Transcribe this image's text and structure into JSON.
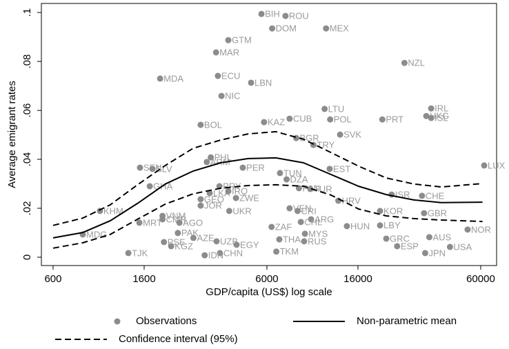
{
  "chart_data": {
    "type": "scatter",
    "x_label": "GDP/capita (US$) log scale",
    "y_label": "Average emigrant rates",
    "x_scale": "log",
    "xlim": [
      529,
      71200
    ],
    "ylim": [
      -0.0034,
      0.1037
    ],
    "xticks": [
      600,
      1600,
      6000,
      16000,
      60000
    ],
    "yticks": [
      0,
      {
        "value": 0.02,
        "label": ".02"
      },
      {
        "value": 0.04,
        "label": ".04"
      },
      {
        "value": 0.06,
        "label": ".06"
      },
      {
        "value": 0.08,
        "label": ".08"
      },
      {
        "value": 0.1,
        "label": ".1"
      }
    ],
    "series": [
      {
        "name": "Observations",
        "color": "#8c8c8c",
        "labels": [
          "BIH",
          "ROU",
          "DOM",
          "MEX",
          "GTM",
          "MAR",
          "MDA",
          "ECU",
          "LBN",
          "NZL",
          "NIC",
          "BOL",
          "KAZ",
          "LTU",
          "CUB",
          "POL",
          "PRT",
          "IRL",
          "HKG",
          "ISL",
          "SVK",
          "BGR",
          "TRY",
          "LUX",
          "SEN",
          "SLV",
          "PHL",
          "ARM",
          "PER",
          "EST",
          "TUN",
          "DZA",
          "ISR",
          "CHE",
          "PRY",
          "LKA",
          "IRQ",
          "ZWE",
          "GHA",
          "KHM",
          "GEO",
          "JOR",
          "UKR",
          "PAN",
          "TUR",
          "HRV",
          "VEN",
          "CRI",
          "ARG",
          "CHL",
          "HUN",
          "KOR",
          "LBY",
          "GBR",
          "USA",
          "NOR",
          "JPN",
          "AUS",
          "ESP",
          "GRC",
          "MYS",
          "RUS",
          "THA",
          "TKM",
          "ZAF",
          "CHN",
          "IDN",
          "UZB",
          "EGY",
          "AZE",
          "PAK",
          "KGZ",
          "PSE",
          "TJK",
          "MDG",
          "MRT",
          "CMR",
          "VNM",
          "AGO"
        ],
        "x": [
          5660,
          7330,
          6350,
          11350,
          3960,
          3470,
          1900,
          3540,
          5060,
          26400,
          3680,
          2940,
          5820,
          11170,
          7660,
          11860,
          20800,
          35200,
          33400,
          35200,
          13200,
          8230,
          9900,
          62300,
          1530,
          1750,
          3280,
          3140,
          4630,
          11800,
          6910,
          7420,
          23000,
          31900,
          3600,
          3240,
          3960,
          4300,
          1700,
          994,
          2940,
          2940,
          4000,
          8470,
          9580,
          12950,
          7660,
          8350,
          9660,
          8650,
          14200,
          20300,
          20300,
          32600,
          43100,
          52100,
          33000,
          34500,
          24400,
          21700,
          9040,
          8960,
          6860,
          6640,
          6310,
          3620,
          3070,
          3490,
          4330,
          2720,
          2300,
          2140,
          1980,
          1350,
          826,
          1520,
          1950,
          1950,
          2340
        ],
        "values": [
          0.0994,
          0.0986,
          0.0935,
          0.0935,
          0.0887,
          0.0837,
          0.073,
          0.0741,
          0.0713,
          0.0794,
          0.0659,
          0.0541,
          0.0552,
          0.0606,
          0.0566,
          0.0563,
          0.0563,
          0.0608,
          0.0577,
          0.0569,
          0.0501,
          0.0487,
          0.0459,
          0.0375,
          0.0366,
          0.0361,
          0.0408,
          0.0389,
          0.0366,
          0.0361,
          0.0344,
          0.0318,
          0.0256,
          0.0251,
          0.029,
          0.0262,
          0.027,
          0.0242,
          0.029,
          0.0189,
          0.0237,
          0.0211,
          0.0189,
          0.0282,
          0.0279,
          0.0231,
          0.02,
          0.0189,
          0.0155,
          0.0144,
          0.0127,
          0.0189,
          0.013,
          0.018,
          0.0042,
          0.0113,
          0.0017,
          0.0082,
          0.0045,
          0.0076,
          0.0096,
          0.0065,
          0.0073,
          0.0023,
          0.0124,
          0.0017,
          0.0008,
          0.0065,
          0.0051,
          0.0079,
          0.0099,
          0.0045,
          0.0062,
          0.0017,
          0.0093,
          0.0141,
          0.0155,
          0.0169,
          0.0141
        ]
      },
      {
        "name": "Non-parametric mean",
        "color": "#000000",
        "line_style": "solid",
        "x": [
          600,
          826,
          1110,
          1490,
          2010,
          2710,
          3650,
          4910,
          6610,
          8890,
          11970,
          16100,
          21700,
          29200,
          39300,
          61200
        ],
        "values": [
          0.0079,
          0.0101,
          0.0149,
          0.022,
          0.0299,
          0.0352,
          0.0386,
          0.0403,
          0.0406,
          0.0386,
          0.0338,
          0.029,
          0.0256,
          0.0234,
          0.0223,
          0.0225
        ]
      },
      {
        "name": "Confidence interval (95%)",
        "color": "#000000",
        "line_style": "dashed",
        "x": [
          600,
          826,
          1110,
          1490,
          2010,
          2710,
          3650,
          4910,
          6610,
          8890,
          11970,
          16100,
          21700,
          29200,
          39300,
          61200
        ],
        "lower": [
          0.0037,
          0.0059,
          0.0093,
          0.0155,
          0.0217,
          0.0259,
          0.0282,
          0.0293,
          0.0296,
          0.029,
          0.0254,
          0.0197,
          0.0169,
          0.0158,
          0.0152,
          0.0146
        ],
        "upper": [
          0.013,
          0.016,
          0.0214,
          0.0296,
          0.0375,
          0.0445,
          0.0479,
          0.0504,
          0.0513,
          0.0482,
          0.0428,
          0.0372,
          0.0324,
          0.0299,
          0.0287,
          0.0301
        ]
      }
    ]
  }
}
